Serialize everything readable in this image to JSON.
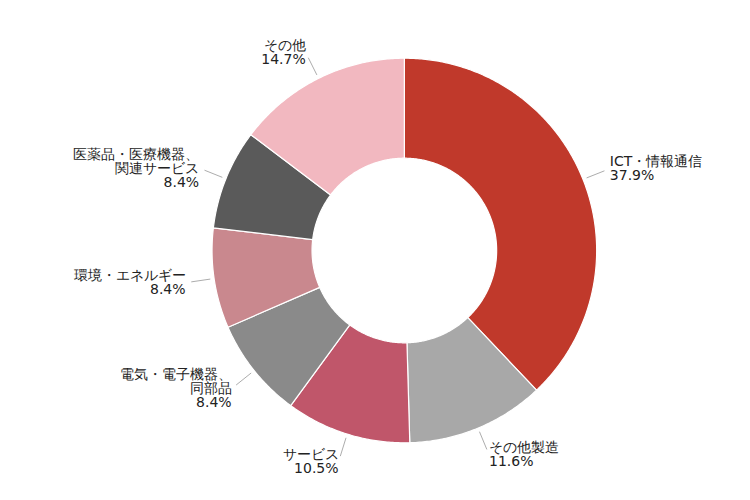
{
  "chart_data": {
    "type": "donut",
    "categories": [
      "ICT・情報通信",
      "その他製造",
      "サービス",
      "電気・電子機器、\n同部品",
      "環境・エネルギー",
      "医薬品・医療機器、\n関連サービス",
      "その他"
    ],
    "values": [
      37.9,
      11.6,
      10.5,
      8.4,
      8.4,
      8.4,
      14.7
    ],
    "value_labels": [
      "37.9%",
      "11.6%",
      "10.5%",
      "8.4%",
      "8.4%",
      "8.4%",
      "14.7%"
    ],
    "colors": [
      "#c0392b",
      "#a8a8a8",
      "#c0566a",
      "#8a8a8a",
      "#c9888e",
      "#5a5a5a",
      "#f2b8c0"
    ],
    "data_labels": true
  }
}
